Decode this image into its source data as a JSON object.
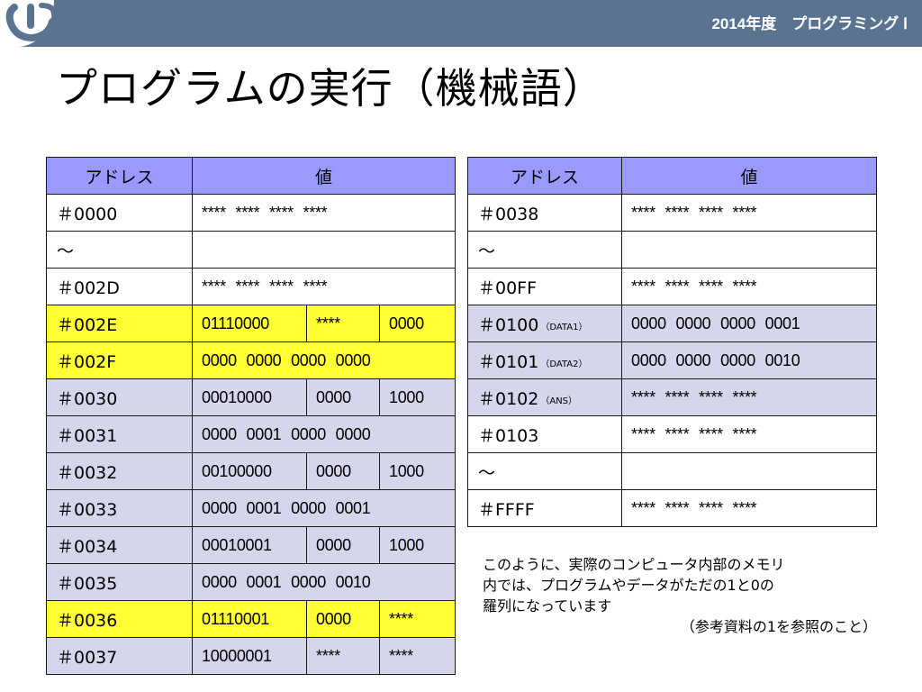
{
  "header": {
    "course_label": "2014年度　プログラミング Ⅰ",
    "logo_icon": "university-logo-icon"
  },
  "slide": {
    "title": "プログラムの実行（機械語）"
  },
  "table_left": {
    "col_address": "アドレス",
    "col_value": "値",
    "rows": [
      {
        "addr": "＃0000",
        "value": "**** **** **** ****",
        "style": "wht"
      },
      {
        "addr": "～",
        "value": "",
        "style": "wht"
      },
      {
        "addr": "＃002D",
        "value": "**** **** **** ****",
        "style": "wht"
      },
      {
        "addr": "＃002E",
        "v1": "01110000",
        "v2": "****",
        "v3": "0000",
        "style": "yel"
      },
      {
        "addr": "＃002F",
        "value": "0000 0000 0000 0000",
        "style": "yel"
      },
      {
        "addr": "＃0030",
        "v1": "00010000",
        "v2": "0000",
        "v3": "1000",
        "style": "lav"
      },
      {
        "addr": "＃0031",
        "value": "0000 0001 0000 0000",
        "style": "lav"
      },
      {
        "addr": "＃0032",
        "v1": "00100000",
        "v2": "0000",
        "v3": "1000",
        "style": "lav"
      },
      {
        "addr": "＃0033",
        "value": "0000 0001 0000 0001",
        "style": "lav"
      },
      {
        "addr": "＃0034",
        "v1": "00010001",
        "v2": "0000",
        "v3": "1000",
        "style": "lav"
      },
      {
        "addr": "＃0035",
        "value": "0000 0001 0000 0010",
        "style": "lav"
      },
      {
        "addr": "＃0036",
        "v1": "01110001",
        "v2": "0000",
        "v3": "****",
        "style": "yel"
      },
      {
        "addr": "＃0037",
        "v1": "10000001",
        "v2": "****",
        "v3": "****",
        "style": "lav"
      }
    ]
  },
  "table_right": {
    "col_address": "アドレス",
    "col_value": "値",
    "rows": [
      {
        "addr": "＃0038",
        "sub": "",
        "value": "**** **** **** ****",
        "style": "wht"
      },
      {
        "addr": "～",
        "sub": "",
        "value": "",
        "style": "wht"
      },
      {
        "addr": "＃00FF",
        "sub": "",
        "value": "**** **** **** ****",
        "style": "wht"
      },
      {
        "addr": "＃0100",
        "sub": "（DATA1）",
        "value": "0000 0000 0000 0001",
        "style": "lav"
      },
      {
        "addr": "＃0101",
        "sub": "（DATA2）",
        "value": "0000 0000 0000 0010",
        "style": "lav"
      },
      {
        "addr": "＃0102",
        "sub": "（ANS）",
        "value": "**** **** **** ****",
        "style": "lav"
      },
      {
        "addr": "＃0103",
        "sub": "",
        "value": "**** **** **** ****",
        "style": "wht"
      },
      {
        "addr": "～",
        "sub": "",
        "value": "",
        "style": "wht"
      },
      {
        "addr": "＃FFFF",
        "sub": "",
        "value": "**** **** **** ****",
        "style": "wht"
      }
    ]
  },
  "caption": {
    "line1": "このように、実際のコンピュータ内部のメモリ",
    "line2": "内では、プログラムやデータがただの1と0の",
    "line3": "羅列になっています",
    "reference": "（参考資料の1を参照のこと）"
  },
  "colors": {
    "header_bar": "#5a7390",
    "table_header": "#9999ff",
    "row_lavender": "#d5d5ec",
    "row_yellow": "#ffff33"
  }
}
